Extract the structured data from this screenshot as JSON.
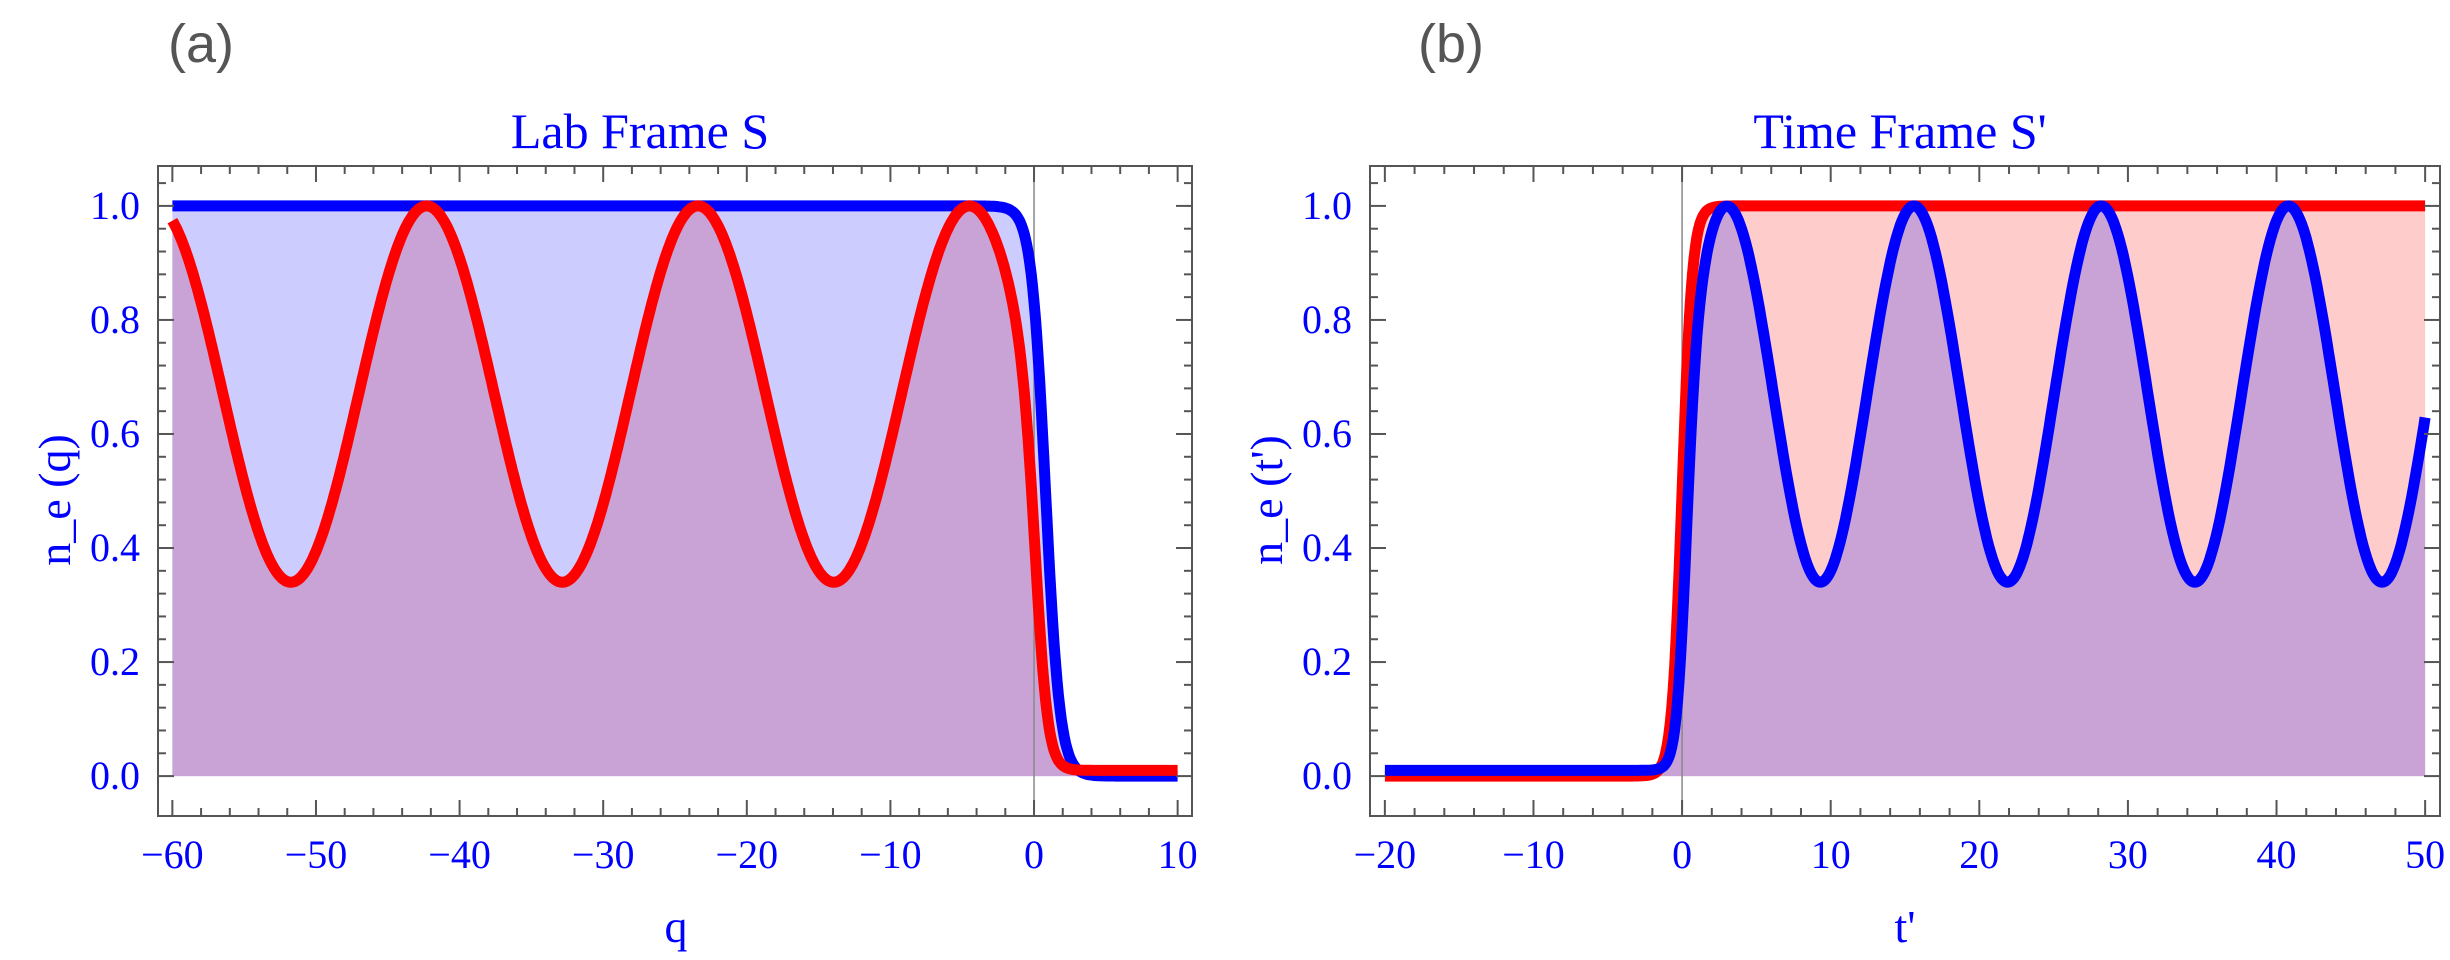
{
  "chart_data": [
    {
      "panel_label": "(a)",
      "type": "line",
      "title": "Lab Frame S",
      "xlabel": "q",
      "ylabel": "n_e (q)",
      "xlim": [
        -61,
        11
      ],
      "ylim": [
        -0.07,
        1.07
      ],
      "xticks": [
        -60,
        -50,
        -40,
        -30,
        -20,
        -10,
        0,
        10
      ],
      "xtick_labels": [
        "−60",
        "−50",
        "−40",
        "−30",
        "−20",
        "−10",
        "0",
        "10"
      ],
      "yticks": [
        0.0,
        0.2,
        0.4,
        0.6,
        0.8,
        1.0
      ],
      "ytick_labels": [
        "0.0",
        "0.2",
        "0.4",
        "0.6",
        "0.8",
        "1.0"
      ],
      "x_range_plotted": [
        -60,
        10
      ],
      "series": [
        {
          "name": "blue-step",
          "color": "#0000ff",
          "fill": "#ccccff",
          "kind": "step-down",
          "high": 1.0,
          "low": 0.0,
          "center": 0.8,
          "width": 0.5
        },
        {
          "name": "red-oscillation",
          "color": "#ff0000",
          "fill": "#ffcccc",
          "kind": "osc-step-down",
          "min": 0.34,
          "max": 1.0,
          "period": 18.9,
          "peak_at": -4.5,
          "low": 0.01,
          "center": 0.2,
          "width": 0.45
        }
      ],
      "overlap_color": "#c9a3d5"
    },
    {
      "panel_label": "(b)",
      "type": "line",
      "title": "Time Frame S'",
      "xlabel": "t'",
      "ylabel": "n_e (t')",
      "xlim": [
        -21,
        51
      ],
      "ylim": [
        -0.07,
        1.07
      ],
      "xticks": [
        -20,
        -10,
        0,
        10,
        20,
        30,
        40,
        50
      ],
      "xtick_labels": [
        "−20",
        "−10",
        "0",
        "10",
        "20",
        "30",
        "40",
        "50"
      ],
      "yticks": [
        0.0,
        0.2,
        0.4,
        0.6,
        0.8,
        1.0
      ],
      "ytick_labels": [
        "0.0",
        "0.2",
        "0.4",
        "0.6",
        "0.8",
        "1.0"
      ],
      "x_range_plotted": [
        -20,
        50
      ],
      "series": [
        {
          "name": "red-step",
          "color": "#ff0000",
          "fill": "#ffcccc",
          "kind": "step-up",
          "high": 1.0,
          "low": 0.0,
          "center": 0.0,
          "width": 0.35
        },
        {
          "name": "blue-oscillation",
          "color": "#0000ff",
          "fill": "#ccccff",
          "kind": "osc-step-up",
          "min": 0.34,
          "max": 1.0,
          "period": 12.6,
          "peak_at": 3.0,
          "low": 0.01,
          "center": 0.2,
          "width": 0.35
        }
      ],
      "overlap_color": "#c9a3d5"
    }
  ]
}
